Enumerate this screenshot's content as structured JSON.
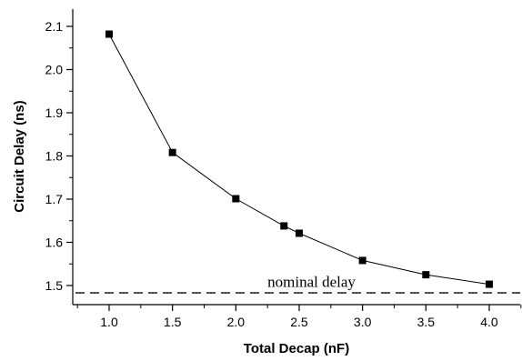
{
  "chart_data": {
    "type": "line",
    "title": "",
    "xlabel": "Total Decap (nF)",
    "ylabel": "Circuit Delay (ns)",
    "xlim": [
      0.75,
      4.3
    ],
    "ylim": [
      1.45,
      2.15
    ],
    "x_ticks": [
      "1.0",
      "1.5",
      "2.0",
      "2.5",
      "3.0",
      "3.5",
      "4.0"
    ],
    "y_ticks": [
      "1.5",
      "1.6",
      "1.7",
      "1.8",
      "1.9",
      "2.0",
      "2.1"
    ],
    "grid": false,
    "series": [
      {
        "name": "",
        "marker": "square",
        "color": "#000000",
        "x": [
          1.0,
          1.5,
          2.0,
          2.38,
          2.5,
          3.0,
          3.5,
          4.0
        ],
        "y": [
          2.082,
          1.808,
          1.701,
          1.638,
          1.621,
          1.558,
          1.525,
          1.503
        ]
      }
    ],
    "reference_line": {
      "y": 1.483,
      "style": "dashed",
      "color": "#000000"
    },
    "annotations": [
      {
        "text": "nominal delay",
        "x": 2.25,
        "y": 1.497
      }
    ]
  }
}
